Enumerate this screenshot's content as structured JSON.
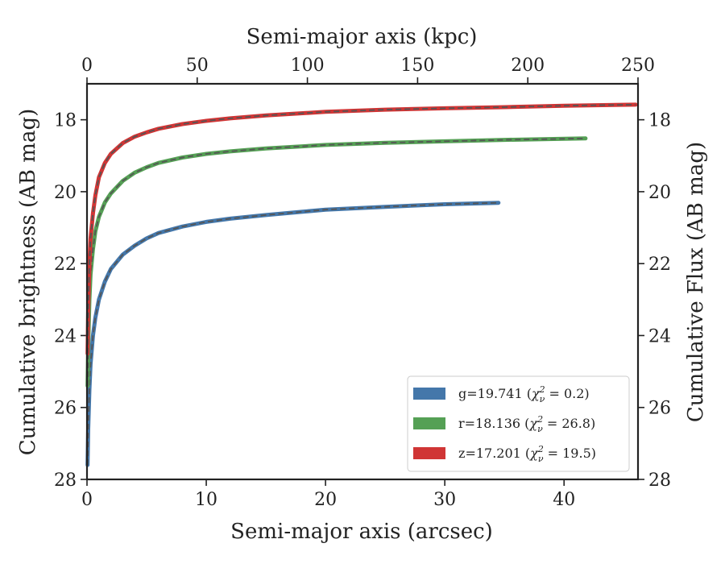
{
  "chart_data": {
    "type": "line",
    "x_label_bottom": "Semi-major axis (arcsec)",
    "x_label_top": "Semi-major axis (kpc)",
    "y_label_left": "Cumulative brightness (AB mag)",
    "y_label_right": "Cumulative Flux (AB mag)",
    "xlim": [
      0,
      46.2
    ],
    "xlim_top": [
      0,
      250
    ],
    "ylim": [
      28,
      17
    ],
    "y_inverted": true,
    "x_ticks": [
      0,
      10,
      20,
      30,
      40
    ],
    "x_ticks_top": [
      0,
      50,
      100,
      150,
      200,
      250
    ],
    "y_ticks": [
      18,
      20,
      22,
      24,
      26,
      28
    ],
    "legend_position": "lower right",
    "grid": false,
    "series": [
      {
        "name": "g=19.741 (χ²ᵥ = 0.2)",
        "band": "g",
        "total_mag": "19.741",
        "chi2_nu": "0.2",
        "color": "#4477aa",
        "x": [
          0.05,
          0.1,
          0.2,
          0.3,
          0.5,
          0.7,
          1.0,
          1.5,
          2,
          3,
          4,
          5,
          6,
          8,
          10,
          12,
          15,
          18,
          20,
          25,
          30,
          34.5
        ],
        "y": [
          27.6,
          26.6,
          25.5,
          24.8,
          24.0,
          23.5,
          23.0,
          22.5,
          22.15,
          21.75,
          21.5,
          21.3,
          21.15,
          20.97,
          20.84,
          20.75,
          20.65,
          20.56,
          20.5,
          20.42,
          20.35,
          20.31
        ]
      },
      {
        "name": "r=18.136 (χ²ᵥ = 26.8)",
        "band": "r",
        "total_mag": "18.136",
        "chi2_nu": "26.8",
        "color": "#55a055",
        "x": [
          0.05,
          0.1,
          0.2,
          0.3,
          0.5,
          0.7,
          1.0,
          1.5,
          2,
          3,
          4,
          5,
          6,
          8,
          10,
          12,
          15,
          20,
          25,
          30,
          35,
          40,
          41.8
        ],
        "y": [
          25.4,
          24.3,
          23.0,
          22.3,
          21.6,
          21.1,
          20.7,
          20.3,
          20.05,
          19.7,
          19.47,
          19.32,
          19.2,
          19.05,
          18.95,
          18.88,
          18.8,
          18.7,
          18.64,
          18.6,
          18.56,
          18.53,
          18.52
        ]
      },
      {
        "name": "z=17.201 (χ²ᵥ = 19.5)",
        "band": "z",
        "total_mag": "17.201",
        "chi2_nu": "19.5",
        "color": "#d03535",
        "x": [
          0.05,
          0.1,
          0.2,
          0.3,
          0.5,
          0.7,
          1.0,
          1.5,
          2,
          3,
          4,
          5,
          6,
          8,
          10,
          12,
          15,
          20,
          25,
          30,
          35,
          40,
          46
        ],
        "y": [
          24.5,
          23.3,
          22.0,
          21.3,
          20.6,
          20.1,
          19.6,
          19.2,
          18.95,
          18.65,
          18.47,
          18.35,
          18.25,
          18.12,
          18.03,
          17.96,
          17.88,
          17.78,
          17.72,
          17.68,
          17.65,
          17.61,
          17.58
        ]
      }
    ]
  }
}
